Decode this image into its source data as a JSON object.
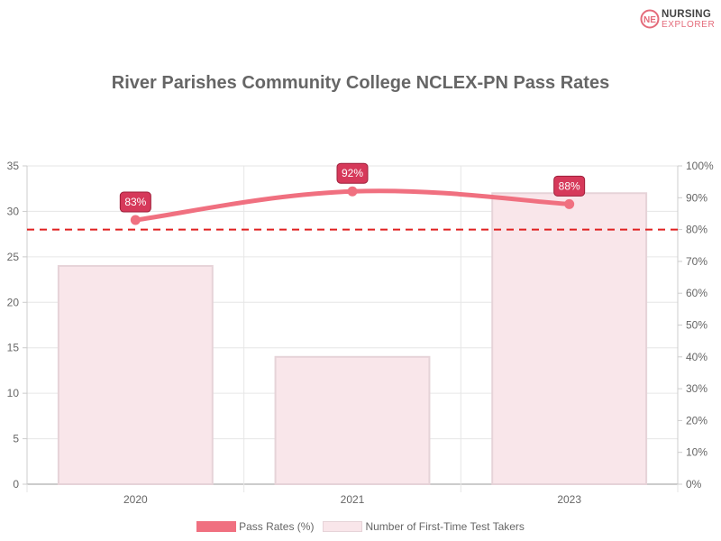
{
  "brand": {
    "logo_letter": "NE",
    "line1": "NURSING",
    "line2": "EXPLORER"
  },
  "chart_data": {
    "type": "bar",
    "title": "River Parishes Community College NCLEX-PN Pass Rates",
    "categories": [
      "2020",
      "2021",
      "2023"
    ],
    "series": [
      {
        "name": "Number of First-Time Test Takers",
        "type": "bar",
        "axis": "left",
        "values": [
          24,
          14,
          32
        ],
        "color": "#f9e6ea",
        "border_color": "#e6d3d8"
      },
      {
        "name": "Pass Rates (%)",
        "type": "line",
        "axis": "right",
        "values": [
          83,
          92,
          88
        ],
        "labels": [
          "83%",
          "92%",
          "88%"
        ],
        "color": "#f07080"
      }
    ],
    "reference_line": {
      "axis": "right",
      "value": 80,
      "style": "dashed",
      "color": "#e02020"
    },
    "left_axis": {
      "ylim": [
        0,
        35
      ],
      "ticks": [
        "0",
        "5",
        "10",
        "15",
        "20",
        "25",
        "30",
        "35"
      ]
    },
    "right_axis": {
      "ylim": [
        0,
        100
      ],
      "ticks": [
        "0%",
        "10%",
        "20%",
        "30%",
        "40%",
        "50%",
        "60%",
        "70%",
        "80%",
        "90%",
        "100%"
      ]
    },
    "grid": true,
    "legend_position": "bottom",
    "label_color": "#d6395a"
  }
}
